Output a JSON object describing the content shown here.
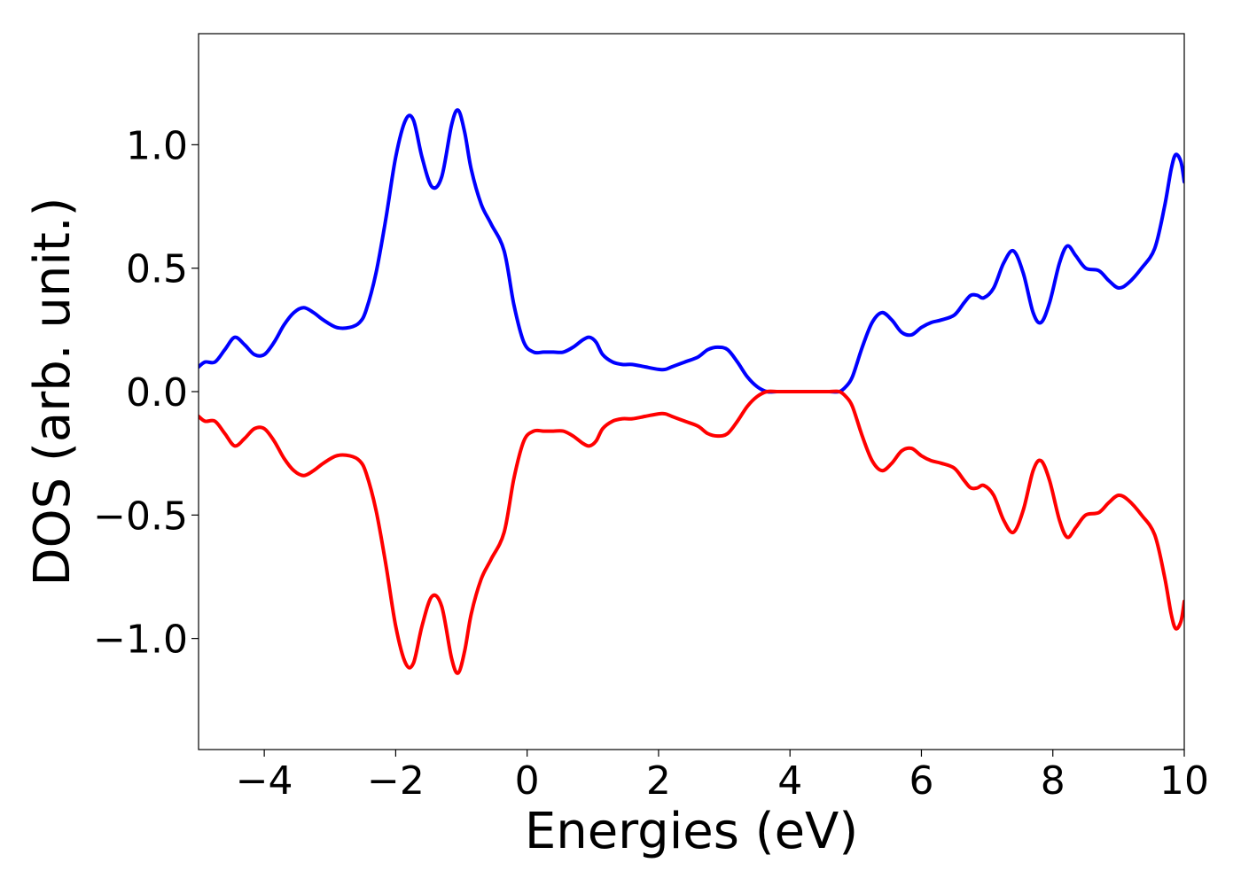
{
  "chart_data": {
    "type": "line",
    "title": "",
    "xlabel": "Energies (eV)",
    "ylabel": "DOS (arb. unit.)",
    "xlim": [
      -5,
      10
    ],
    "ylim": [
      -1.45,
      1.45
    ],
    "grid": false,
    "legend": "none",
    "x_ticks": [
      -4,
      -2,
      0,
      2,
      4,
      6,
      8,
      10
    ],
    "x_tick_labels": [
      "−4",
      "−2",
      "0",
      "2",
      "4",
      "6",
      "8",
      "10"
    ],
    "y_ticks": [
      -1.0,
      -0.5,
      0.0,
      0.5,
      1.0
    ],
    "y_tick_labels": [
      "−1.0",
      "−0.5",
      "0.0",
      "0.5",
      "1.0"
    ],
    "series": [
      {
        "color": "#0000ff",
        "x": [
          -5.0,
          -4.9,
          -4.75,
          -4.6,
          -4.45,
          -4.3,
          -4.15,
          -4.0,
          -3.85,
          -3.7,
          -3.55,
          -3.4,
          -3.25,
          -3.1,
          -2.9,
          -2.7,
          -2.55,
          -2.45,
          -2.3,
          -2.15,
          -2.0,
          -1.85,
          -1.73,
          -1.6,
          -1.45,
          -1.3,
          -1.15,
          -1.05,
          -0.95,
          -0.85,
          -0.7,
          -0.55,
          -0.35,
          -0.2,
          -0.05,
          0.1,
          0.25,
          0.4,
          0.55,
          0.7,
          0.85,
          0.95,
          1.05,
          1.15,
          1.3,
          1.45,
          1.6,
          1.8,
          2.0,
          2.1,
          2.2,
          2.4,
          2.6,
          2.75,
          2.9,
          3.05,
          3.2,
          3.35,
          3.5,
          3.65,
          3.8,
          4.0,
          4.2,
          4.4,
          4.6,
          4.75,
          4.85,
          4.95,
          5.1,
          5.25,
          5.4,
          5.55,
          5.7,
          5.85,
          6.0,
          6.15,
          6.3,
          6.5,
          6.65,
          6.75,
          6.85,
          6.95,
          7.1,
          7.25,
          7.4,
          7.55,
          7.7,
          7.82,
          7.95,
          8.1,
          8.22,
          8.35,
          8.5,
          8.7,
          8.85,
          9.0,
          9.15,
          9.35,
          9.55,
          9.7,
          9.8,
          9.87,
          9.95,
          10.0
        ],
        "y": [
          0.1,
          0.12,
          0.12,
          0.17,
          0.22,
          0.19,
          0.15,
          0.15,
          0.2,
          0.27,
          0.32,
          0.34,
          0.32,
          0.29,
          0.26,
          0.26,
          0.28,
          0.33,
          0.48,
          0.7,
          0.95,
          1.1,
          1.1,
          0.95,
          0.83,
          0.87,
          1.08,
          1.14,
          1.05,
          0.9,
          0.76,
          0.68,
          0.57,
          0.35,
          0.2,
          0.16,
          0.16,
          0.16,
          0.16,
          0.18,
          0.21,
          0.22,
          0.2,
          0.15,
          0.12,
          0.11,
          0.11,
          0.1,
          0.09,
          0.09,
          0.1,
          0.12,
          0.14,
          0.17,
          0.18,
          0.17,
          0.12,
          0.06,
          0.02,
          0.0,
          0.0,
          0.0,
          0.0,
          0.0,
          0.0,
          0.0,
          0.02,
          0.06,
          0.18,
          0.28,
          0.32,
          0.29,
          0.24,
          0.23,
          0.26,
          0.28,
          0.29,
          0.31,
          0.36,
          0.39,
          0.39,
          0.38,
          0.42,
          0.52,
          0.57,
          0.48,
          0.32,
          0.28,
          0.36,
          0.52,
          0.59,
          0.55,
          0.5,
          0.49,
          0.45,
          0.42,
          0.44,
          0.5,
          0.58,
          0.75,
          0.9,
          0.96,
          0.93,
          0.85
        ]
      },
      {
        "color": "#ff0000",
        "x": [
          -5.0,
          -4.9,
          -4.75,
          -4.6,
          -4.45,
          -4.3,
          -4.15,
          -4.0,
          -3.85,
          -3.7,
          -3.55,
          -3.4,
          -3.25,
          -3.1,
          -2.9,
          -2.7,
          -2.55,
          -2.45,
          -2.3,
          -2.15,
          -2.0,
          -1.85,
          -1.73,
          -1.6,
          -1.45,
          -1.3,
          -1.15,
          -1.05,
          -0.95,
          -0.85,
          -0.7,
          -0.55,
          -0.35,
          -0.2,
          -0.05,
          0.1,
          0.25,
          0.4,
          0.55,
          0.7,
          0.85,
          0.95,
          1.05,
          1.15,
          1.3,
          1.45,
          1.6,
          1.8,
          2.0,
          2.1,
          2.2,
          2.4,
          2.6,
          2.75,
          2.9,
          3.05,
          3.2,
          3.35,
          3.5,
          3.65,
          3.8,
          4.0,
          4.2,
          4.4,
          4.6,
          4.75,
          4.85,
          4.95,
          5.1,
          5.25,
          5.4,
          5.55,
          5.7,
          5.85,
          6.0,
          6.15,
          6.3,
          6.5,
          6.65,
          6.75,
          6.85,
          6.95,
          7.1,
          7.25,
          7.4,
          7.55,
          7.7,
          7.82,
          7.95,
          8.1,
          8.22,
          8.35,
          8.5,
          8.7,
          8.85,
          9.0,
          9.15,
          9.35,
          9.55,
          9.7,
          9.8,
          9.87,
          9.95,
          10.0
        ],
        "y": [
          -0.1,
          -0.12,
          -0.12,
          -0.17,
          -0.22,
          -0.19,
          -0.15,
          -0.15,
          -0.2,
          -0.27,
          -0.32,
          -0.34,
          -0.32,
          -0.29,
          -0.26,
          -0.26,
          -0.28,
          -0.33,
          -0.48,
          -0.7,
          -0.95,
          -1.1,
          -1.1,
          -0.95,
          -0.83,
          -0.87,
          -1.08,
          -1.14,
          -1.05,
          -0.9,
          -0.76,
          -0.68,
          -0.57,
          -0.35,
          -0.2,
          -0.16,
          -0.16,
          -0.16,
          -0.16,
          -0.18,
          -0.21,
          -0.22,
          -0.2,
          -0.15,
          -0.12,
          -0.11,
          -0.11,
          -0.1,
          -0.09,
          -0.09,
          -0.1,
          -0.12,
          -0.14,
          -0.17,
          -0.18,
          -0.17,
          -0.12,
          -0.06,
          -0.02,
          0.0,
          0.0,
          0.0,
          0.0,
          0.0,
          0.0,
          0.0,
          -0.02,
          -0.06,
          -0.18,
          -0.28,
          -0.32,
          -0.29,
          -0.24,
          -0.23,
          -0.26,
          -0.28,
          -0.29,
          -0.31,
          -0.36,
          -0.39,
          -0.39,
          -0.38,
          -0.42,
          -0.52,
          -0.57,
          -0.48,
          -0.32,
          -0.28,
          -0.36,
          -0.52,
          -0.59,
          -0.55,
          -0.5,
          -0.49,
          -0.45,
          -0.42,
          -0.44,
          -0.5,
          -0.58,
          -0.75,
          -0.9,
          -0.96,
          -0.93,
          -0.85
        ]
      }
    ]
  }
}
